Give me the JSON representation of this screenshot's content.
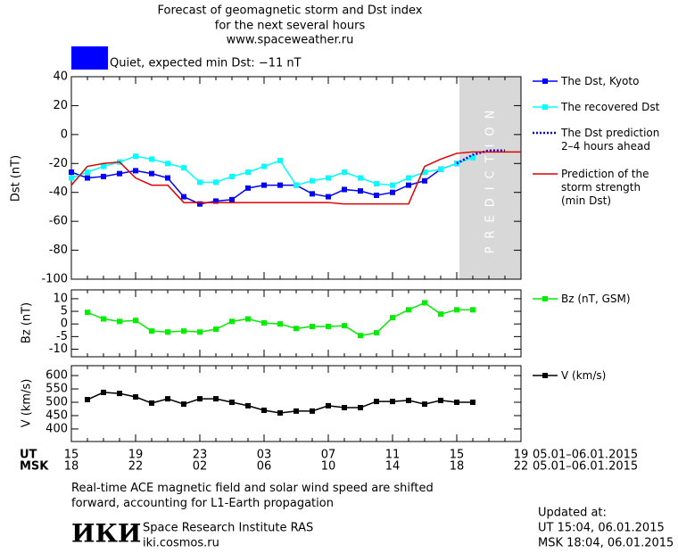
{
  "header": {
    "title_lines": [
      "Forecast of geomagnetic storm and Dst index",
      "for the next several hours",
      "www.spaceweather.ru"
    ],
    "status": "Quiet, expected min Dst: −11 nT",
    "status_color": "#0000ff"
  },
  "x_axis": {
    "ut_label": "UT",
    "msk_label": "MSK",
    "date_range": "05.01–06.01.2015",
    "categories": [
      "15",
      null,
      null,
      null,
      "19",
      null,
      null,
      null,
      "23",
      null,
      null,
      null,
      "03",
      null,
      null,
      null,
      "07",
      null,
      null,
      null,
      "11",
      null,
      null,
      null,
      "15",
      null,
      null,
      null,
      "19"
    ],
    "categories_msk": [
      "18",
      null,
      null,
      null,
      "22",
      null,
      null,
      null,
      "02",
      null,
      null,
      null,
      "06",
      null,
      null,
      null,
      "10",
      null,
      null,
      null,
      "14",
      null,
      null,
      null,
      "18",
      null,
      null,
      null,
      "22"
    ]
  },
  "chart_data": [
    {
      "type": "line",
      "y_label": "Dst (nT)",
      "ylim": [
        -100,
        40
      ],
      "yticks": [
        40,
        20,
        0,
        -20,
        -40,
        -60,
        -80,
        -100
      ],
      "shade_label": "PREDICTION",
      "series": [
        {
          "name": "The Dst, Kyoto",
          "color": "#0000ff",
          "marker": "square",
          "values": [
            -26,
            -30,
            -29,
            -27,
            -25,
            -27,
            -30,
            -43,
            -48,
            -46,
            -45,
            -37,
            -35,
            -35,
            -35,
            -41,
            -43,
            -38,
            -39,
            -42,
            -40,
            -35,
            -32,
            -24,
            -20,
            null,
            null,
            null,
            null
          ]
        },
        {
          "name": "The recovered Dst",
          "color": "#00ffff",
          "marker": "square",
          "values": [
            -30,
            -26,
            -22,
            -19,
            -15,
            -17,
            -20,
            -23,
            -33,
            -33,
            -29,
            -26,
            -22,
            -18,
            -35,
            -32,
            -30,
            -26,
            -30,
            -34,
            -35,
            -30,
            -26,
            -24,
            -20,
            -16,
            null,
            null,
            null
          ]
        },
        {
          "name": "The Dst prediction\n2–4 hours ahead",
          "color": "#0000ff",
          "dash": "dotted",
          "values": [
            null,
            null,
            null,
            null,
            null,
            null,
            null,
            null,
            null,
            null,
            null,
            null,
            null,
            null,
            null,
            null,
            null,
            null,
            null,
            null,
            null,
            null,
            null,
            null,
            -20,
            -14,
            -11,
            -11,
            null
          ]
        },
        {
          "name": "Prediction of the\nstorm strength\n(min Dst)",
          "color": "#dd0000",
          "values": [
            -35,
            -22,
            -20,
            -19,
            -30,
            -35,
            -35,
            -47,
            -47,
            -47,
            -47,
            -47,
            -47,
            -47,
            -47,
            -47,
            -47,
            -48,
            -48,
            -48,
            -48,
            -48,
            -22,
            -17,
            -13,
            -12,
            -12,
            -12,
            -12
          ]
        }
      ]
    },
    {
      "type": "line",
      "y_label": "Bz (nT)",
      "ylim": [
        -13,
        13.5
      ],
      "yticks": [
        10,
        5,
        0,
        -5,
        -10
      ],
      "series": [
        {
          "name": "Bz (nT, GSM)",
          "color": "#00ee00",
          "marker": "square",
          "values": [
            null,
            4.6,
            2,
            1,
            1.4,
            -2.8,
            -3.2,
            -2.8,
            -3.2,
            -2.1,
            1,
            2,
            0.4,
            0,
            -1.8,
            -1,
            -1,
            -0.7,
            -4.6,
            -3.5,
            2.5,
            5.6,
            8.4,
            3.9,
            5.6,
            5.6,
            null,
            null,
            null
          ]
        }
      ]
    },
    {
      "type": "line",
      "y_label": "V (km/s)",
      "ylim": [
        353,
        637
      ],
      "yticks": [
        600,
        550,
        500,
        450,
        400
      ],
      "series": [
        {
          "name": "V (km/s)",
          "color": "#000000",
          "marker": "square",
          "values": [
            null,
            510,
            537,
            533,
            520,
            497,
            513,
            493,
            513,
            513,
            500,
            487,
            470,
            460,
            467,
            467,
            487,
            480,
            480,
            503,
            503,
            507,
            493,
            507,
            500,
            500,
            null,
            null,
            null
          ]
        }
      ]
    }
  ],
  "footer": {
    "note": "Real-time ACE magnetic field and solar wind speed are shifted\nforward, accounting for L1-Earth propagation",
    "logo": "ИКИ",
    "institute": "Space Research Institute RAS",
    "site": "iki.cosmos.ru",
    "updated_lines": [
      "Updated at:",
      "UT  15:04, 06.01.2015",
      "MSK 18:04, 06.01.2015"
    ]
  }
}
